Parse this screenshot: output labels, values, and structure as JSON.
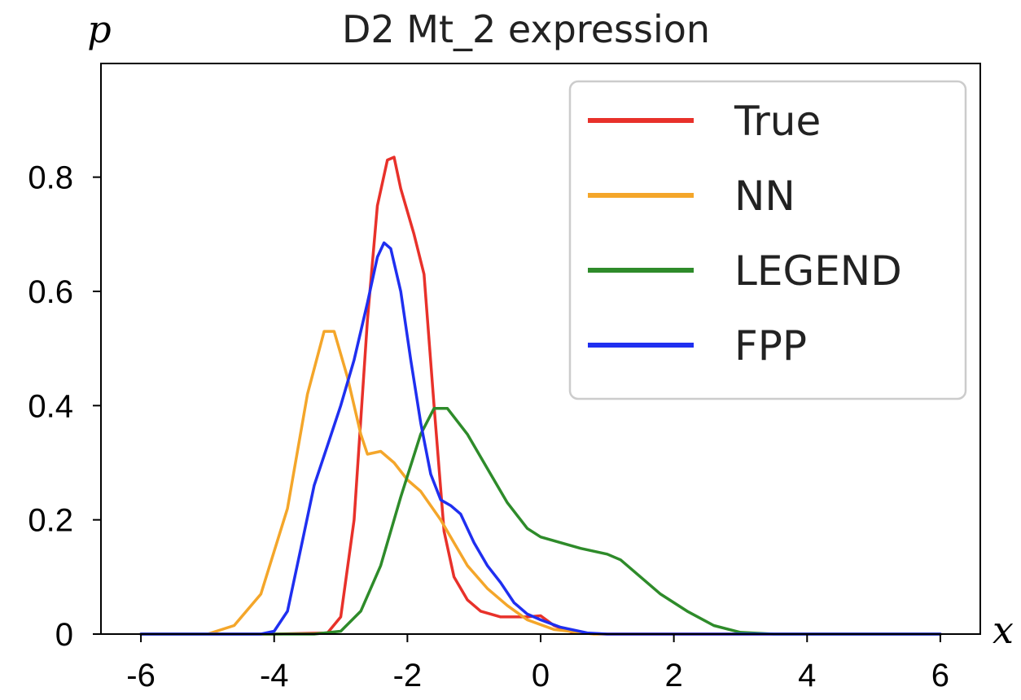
{
  "chart_data": {
    "type": "line",
    "title": "D2 Mt_2 expression",
    "xlabel": "x",
    "ylabel": "p",
    "xlim": [
      -6.6,
      6.6
    ],
    "ylim": [
      0,
      0.999
    ],
    "xticks": [
      -6,
      -4,
      -2,
      0,
      2,
      4,
      6
    ],
    "xtick_labels": [
      "-6",
      "-4",
      "-2",
      "0",
      "2",
      "4",
      "6"
    ],
    "yticks": [
      0,
      0.2,
      0.4,
      0.6,
      0.8
    ],
    "ytick_labels": [
      "0",
      "0.2",
      "0.4",
      "0.6",
      "0.8"
    ],
    "grid": false,
    "legend_position": "top-right",
    "series": [
      {
        "name": "True",
        "color": "#e8312a",
        "points": [
          [
            -6,
            0
          ],
          [
            -4,
            0
          ],
          [
            -3.2,
            0.002
          ],
          [
            -3,
            0.03
          ],
          [
            -2.8,
            0.2
          ],
          [
            -2.6,
            0.55
          ],
          [
            -2.45,
            0.75
          ],
          [
            -2.3,
            0.83
          ],
          [
            -2.2,
            0.835
          ],
          [
            -2.1,
            0.78
          ],
          [
            -1.9,
            0.7
          ],
          [
            -1.75,
            0.63
          ],
          [
            -1.6,
            0.4
          ],
          [
            -1.45,
            0.18
          ],
          [
            -1.3,
            0.1
          ],
          [
            -1.1,
            0.06
          ],
          [
            -0.9,
            0.04
          ],
          [
            -0.6,
            0.03
          ],
          [
            -0.4,
            0.03
          ],
          [
            -0.2,
            0.03
          ],
          [
            0,
            0.032
          ],
          [
            0.2,
            0.015
          ],
          [
            0.5,
            0.002
          ],
          [
            1,
            0
          ],
          [
            6,
            0
          ]
        ]
      },
      {
        "name": "NN",
        "color": "#f4a62a",
        "points": [
          [
            -6,
            0
          ],
          [
            -5,
            0
          ],
          [
            -4.6,
            0.015
          ],
          [
            -4.2,
            0.07
          ],
          [
            -3.8,
            0.22
          ],
          [
            -3.5,
            0.42
          ],
          [
            -3.25,
            0.53
          ],
          [
            -3.1,
            0.53
          ],
          [
            -2.9,
            0.45
          ],
          [
            -2.7,
            0.35
          ],
          [
            -2.6,
            0.315
          ],
          [
            -2.4,
            0.32
          ],
          [
            -2.2,
            0.3
          ],
          [
            -2,
            0.27
          ],
          [
            -1.8,
            0.25
          ],
          [
            -1.5,
            0.2
          ],
          [
            -1.3,
            0.16
          ],
          [
            -1.1,
            0.12
          ],
          [
            -0.8,
            0.08
          ],
          [
            -0.5,
            0.05
          ],
          [
            -0.2,
            0.025
          ],
          [
            0.2,
            0.008
          ],
          [
            0.8,
            0
          ],
          [
            6,
            0
          ]
        ]
      },
      {
        "name": "LEGEND",
        "color": "#2e8b2a",
        "points": [
          [
            -6,
            0
          ],
          [
            -3.4,
            0
          ],
          [
            -3,
            0.005
          ],
          [
            -2.7,
            0.04
          ],
          [
            -2.4,
            0.12
          ],
          [
            -2.1,
            0.24
          ],
          [
            -1.8,
            0.35
          ],
          [
            -1.6,
            0.395
          ],
          [
            -1.4,
            0.395
          ],
          [
            -1.1,
            0.35
          ],
          [
            -0.8,
            0.29
          ],
          [
            -0.5,
            0.23
          ],
          [
            -0.2,
            0.185
          ],
          [
            0,
            0.17
          ],
          [
            0.3,
            0.16
          ],
          [
            0.6,
            0.15
          ],
          [
            1,
            0.14
          ],
          [
            1.2,
            0.13
          ],
          [
            1.5,
            0.1
          ],
          [
            1.8,
            0.07
          ],
          [
            2.2,
            0.04
          ],
          [
            2.6,
            0.015
          ],
          [
            3,
            0.003
          ],
          [
            3.5,
            0
          ],
          [
            6,
            0
          ]
        ]
      },
      {
        "name": "FPP",
        "color": "#1f2ff0",
        "points": [
          [
            -6,
            0
          ],
          [
            -4.2,
            0
          ],
          [
            -4,
            0.005
          ],
          [
            -3.8,
            0.04
          ],
          [
            -3.6,
            0.15
          ],
          [
            -3.4,
            0.26
          ],
          [
            -3.2,
            0.33
          ],
          [
            -3,
            0.4
          ],
          [
            -2.8,
            0.48
          ],
          [
            -2.6,
            0.58
          ],
          [
            -2.45,
            0.66
          ],
          [
            -2.35,
            0.685
          ],
          [
            -2.25,
            0.675
          ],
          [
            -2.1,
            0.6
          ],
          [
            -1.95,
            0.48
          ],
          [
            -1.8,
            0.37
          ],
          [
            -1.65,
            0.28
          ],
          [
            -1.5,
            0.235
          ],
          [
            -1.35,
            0.225
          ],
          [
            -1.2,
            0.21
          ],
          [
            -1,
            0.16
          ],
          [
            -0.8,
            0.12
          ],
          [
            -0.6,
            0.09
          ],
          [
            -0.4,
            0.055
          ],
          [
            -0.2,
            0.035
          ],
          [
            0,
            0.025
          ],
          [
            0.3,
            0.012
          ],
          [
            0.7,
            0.002
          ],
          [
            1,
            0
          ],
          [
            6,
            0
          ]
        ]
      }
    ]
  }
}
